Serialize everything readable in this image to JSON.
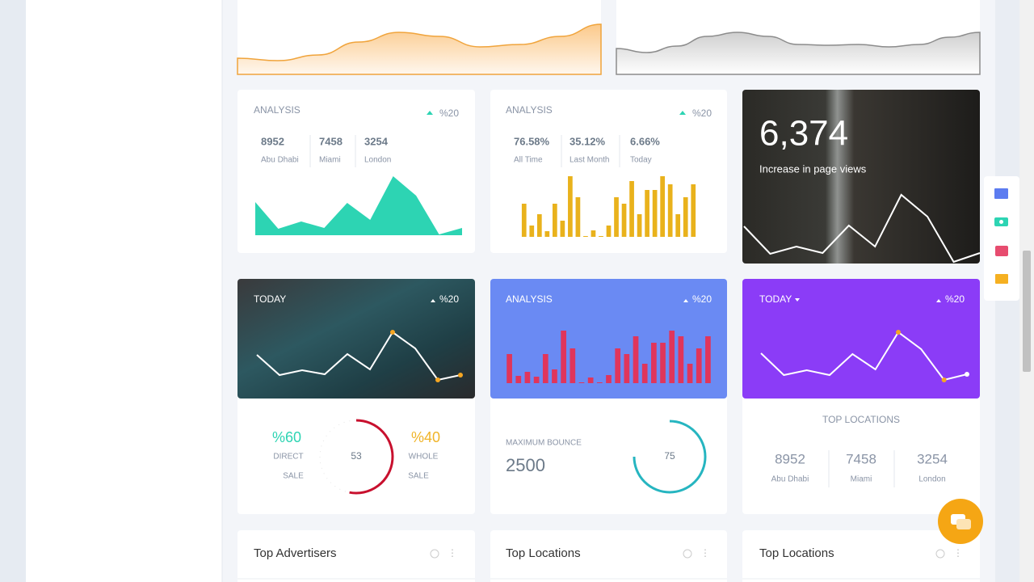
{
  "top_charts": [
    {
      "type": "area",
      "values": [
        20,
        17,
        24,
        40,
        52,
        47,
        34,
        37,
        47,
        62
      ],
      "ylim": [
        0,
        70
      ]
    },
    {
      "type": "area",
      "values": [
        32,
        27,
        35,
        47,
        52,
        47,
        37,
        36,
        37,
        34,
        37,
        46,
        52
      ],
      "ylim": [
        0,
        70
      ]
    }
  ],
  "analysis_cards": [
    {
      "title": "ANALYSIS",
      "change": "%20",
      "stats": [
        {
          "value": 8952,
          "label": "Abu Dhabi"
        },
        {
          "value": 7458,
          "label": "Miami"
        },
        {
          "value": 3254,
          "label": "London"
        }
      ],
      "chart": {
        "type": "area",
        "values": [
          41,
          8,
          17,
          9,
          40,
          19,
          73,
          49,
          1,
          9
        ],
        "ylim": [
          0,
          80
        ]
      }
    },
    {
      "title": "ANALYSIS",
      "change": "%20",
      "stats": [
        {
          "value": "76.58%",
          "label": "All Time"
        },
        {
          "value": "35.12%",
          "label": "Last Month"
        },
        {
          "value": "6.66%",
          "label": "Today"
        }
      ],
      "chart": {
        "type": "bar",
        "values": [
          41,
          14,
          28,
          7,
          41,
          20,
          75,
          49,
          1,
          8,
          1,
          14,
          49,
          41,
          69,
          28,
          58,
          58,
          75,
          65,
          28,
          49,
          65
        ],
        "ylim": [
          0,
          80
        ]
      }
    }
  ],
  "page_views": {
    "value": "6,374",
    "label": "Increase in page views",
    "chart": {
      "type": "line",
      "values": [
        46,
        12,
        21,
        13,
        47,
        21,
        85,
        58,
        2,
        13
      ],
      "ylim": [
        0,
        100
      ]
    }
  },
  "today_card": {
    "title": "TODAY",
    "change": "%20",
    "chart": {
      "type": "line",
      "values": [
        41,
        16,
        22,
        17,
        42,
        23,
        69,
        49,
        10,
        16
      ],
      "ylim": [
        0,
        80
      ]
    },
    "direct": {
      "value": "%60",
      "label_1": "DIRECT",
      "label_2": "SALE"
    },
    "gauge": 53,
    "whole": {
      "value": "%40",
      "label_1": "WHOLE",
      "label_2": "SALE"
    }
  },
  "bounce_card": {
    "title": "ANALYSIS",
    "change": "%20",
    "chart": {
      "type": "bar",
      "values": [
        36,
        9,
        14,
        8,
        36,
        17,
        65,
        43,
        1,
        7,
        1,
        10,
        43,
        36,
        58,
        24,
        50,
        50,
        65,
        58,
        24,
        43,
        58
      ],
      "ylim": [
        0,
        80
      ]
    },
    "label": "MAXIMUM BOUNCE",
    "value": 2500,
    "gauge": 75
  },
  "locations_card": {
    "title": "TODAY",
    "change": "%20",
    "chart": {
      "type": "line",
      "values": [
        43,
        16,
        22,
        16,
        42,
        23,
        69,
        48,
        10,
        17
      ],
      "ylim": [
        0,
        80
      ]
    },
    "heading": "TOP LOCATIONS",
    "stats": [
      {
        "value": 8952,
        "label": "Abu Dhabi"
      },
      {
        "value": 7458,
        "label": "Miami"
      },
      {
        "value": 3254,
        "label": "London"
      }
    ]
  },
  "panels": [
    "Top Advertisers",
    "Top Locations",
    "Top Locations"
  ]
}
